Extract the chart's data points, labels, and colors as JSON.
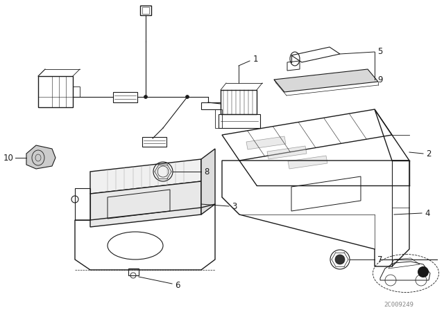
{
  "background_color": "#ffffff",
  "fig_width": 6.4,
  "fig_height": 4.48,
  "dpi": 100,
  "line_color": "#1a1a1a",
  "part_label_fontsize": 8.5,
  "watermark": "2C009249",
  "watermark_color": "#888888"
}
